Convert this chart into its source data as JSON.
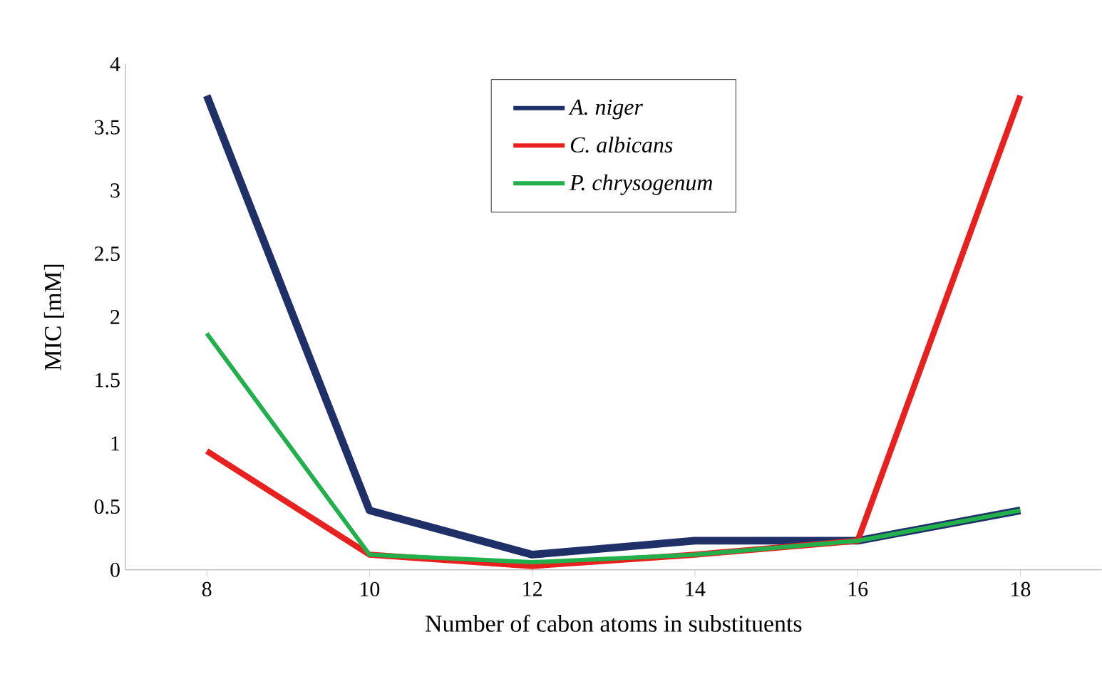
{
  "chart_data": {
    "type": "line",
    "xlabel": "Number of cabon atoms in substituents",
    "ylabel": "MIC [mM]",
    "x": [
      8,
      10,
      12,
      14,
      16,
      18
    ],
    "series": [
      {
        "name": "A. niger",
        "color": "#1f3068",
        "values": [
          3.75,
          0.47,
          0.12,
          0.23,
          0.23,
          0.47
        ]
      },
      {
        "name": "C. albicans",
        "color": "#e8201e",
        "values": [
          0.94,
          0.12,
          0.03,
          0.12,
          0.23,
          3.75
        ]
      },
      {
        "name": "P. chrysogenum",
        "color": "#21b04b",
        "values": [
          1.87,
          0.12,
          0.06,
          0.12,
          0.23,
          0.47
        ]
      }
    ],
    "xlim": [
      7,
      19
    ],
    "xticks": [
      8,
      10,
      12,
      14,
      16,
      18
    ],
    "ylim": [
      0,
      4
    ],
    "yticks": [
      0,
      0.5,
      1,
      1.5,
      2,
      2.5,
      3,
      3.5,
      4
    ],
    "grid": false,
    "legend": "top",
    "marker": "none",
    "line_style": "solid"
  }
}
